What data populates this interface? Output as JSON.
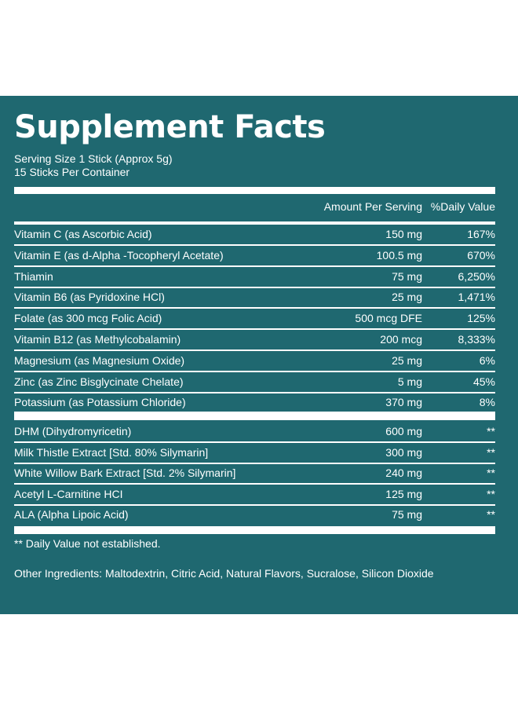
{
  "title": "Supplement Facts",
  "serving_size": "Serving Size 1 Stick (Approx 5g)",
  "servings_per_container": "15 Sticks Per Container",
  "columns": {
    "amount": "Amount Per Serving",
    "daily_value": "%Daily Value"
  },
  "vitamins": [
    {
      "name": "Vitamin C (as Ascorbic Acid)",
      "amount": "150 mg",
      "dv": "167%"
    },
    {
      "name": "Vitamin E (as d-Alpha -Tocopheryl Acetate)",
      "amount": "100.5 mg",
      "dv": "670%"
    },
    {
      "name": "Thiamin",
      "amount": "75 mg",
      "dv": "6,250%"
    },
    {
      "name": "Vitamin B6 (as Pyridoxine HCl)",
      "amount": "25 mg",
      "dv": "1,471%"
    },
    {
      "name": "Folate (as 300 mcg Folic Acid)",
      "amount": "500 mcg DFE",
      "dv": "125%"
    },
    {
      "name": "Vitamin B12 (as Methylcobalamin)",
      "amount": "200 mcg",
      "dv": "8,333%"
    },
    {
      "name": "Magnesium (as Magnesium Oxide)",
      "amount": "25 mg",
      "dv": "6%"
    },
    {
      "name": "Zinc (as Zinc Bisglycinate Chelate)",
      "amount": "5 mg",
      "dv": "45%"
    },
    {
      "name": "Potassium (as Potassium Chloride)",
      "amount": "370 mg",
      "dv": "8%"
    }
  ],
  "other_compounds": [
    {
      "name": "DHM (Dihydromyricetin)",
      "amount": "600 mg",
      "dv": "**"
    },
    {
      "name": "Milk Thistle Extract [Std. 80% Silymarin]",
      "amount": "300 mg",
      "dv": "**"
    },
    {
      "name": "White Willow Bark Extract [Std. 2% Silymarin]",
      "amount": "240 mg",
      "dv": "**"
    },
    {
      "name": "Acetyl L-Carnitine HCI",
      "amount": "125 mg",
      "dv": "**"
    },
    {
      "name": "ALA (Alpha Lipoic Acid)",
      "amount": "75 mg",
      "dv": "**"
    }
  ],
  "footnote": "** Daily Value not established.",
  "other_ingredients": "Other Ingredients: Maltodextrin, Citric Acid, Natural Flavors, Sucralose, Silicon Dioxide",
  "colors": {
    "panel_background": "#1f6870",
    "text": "#ffffff"
  }
}
